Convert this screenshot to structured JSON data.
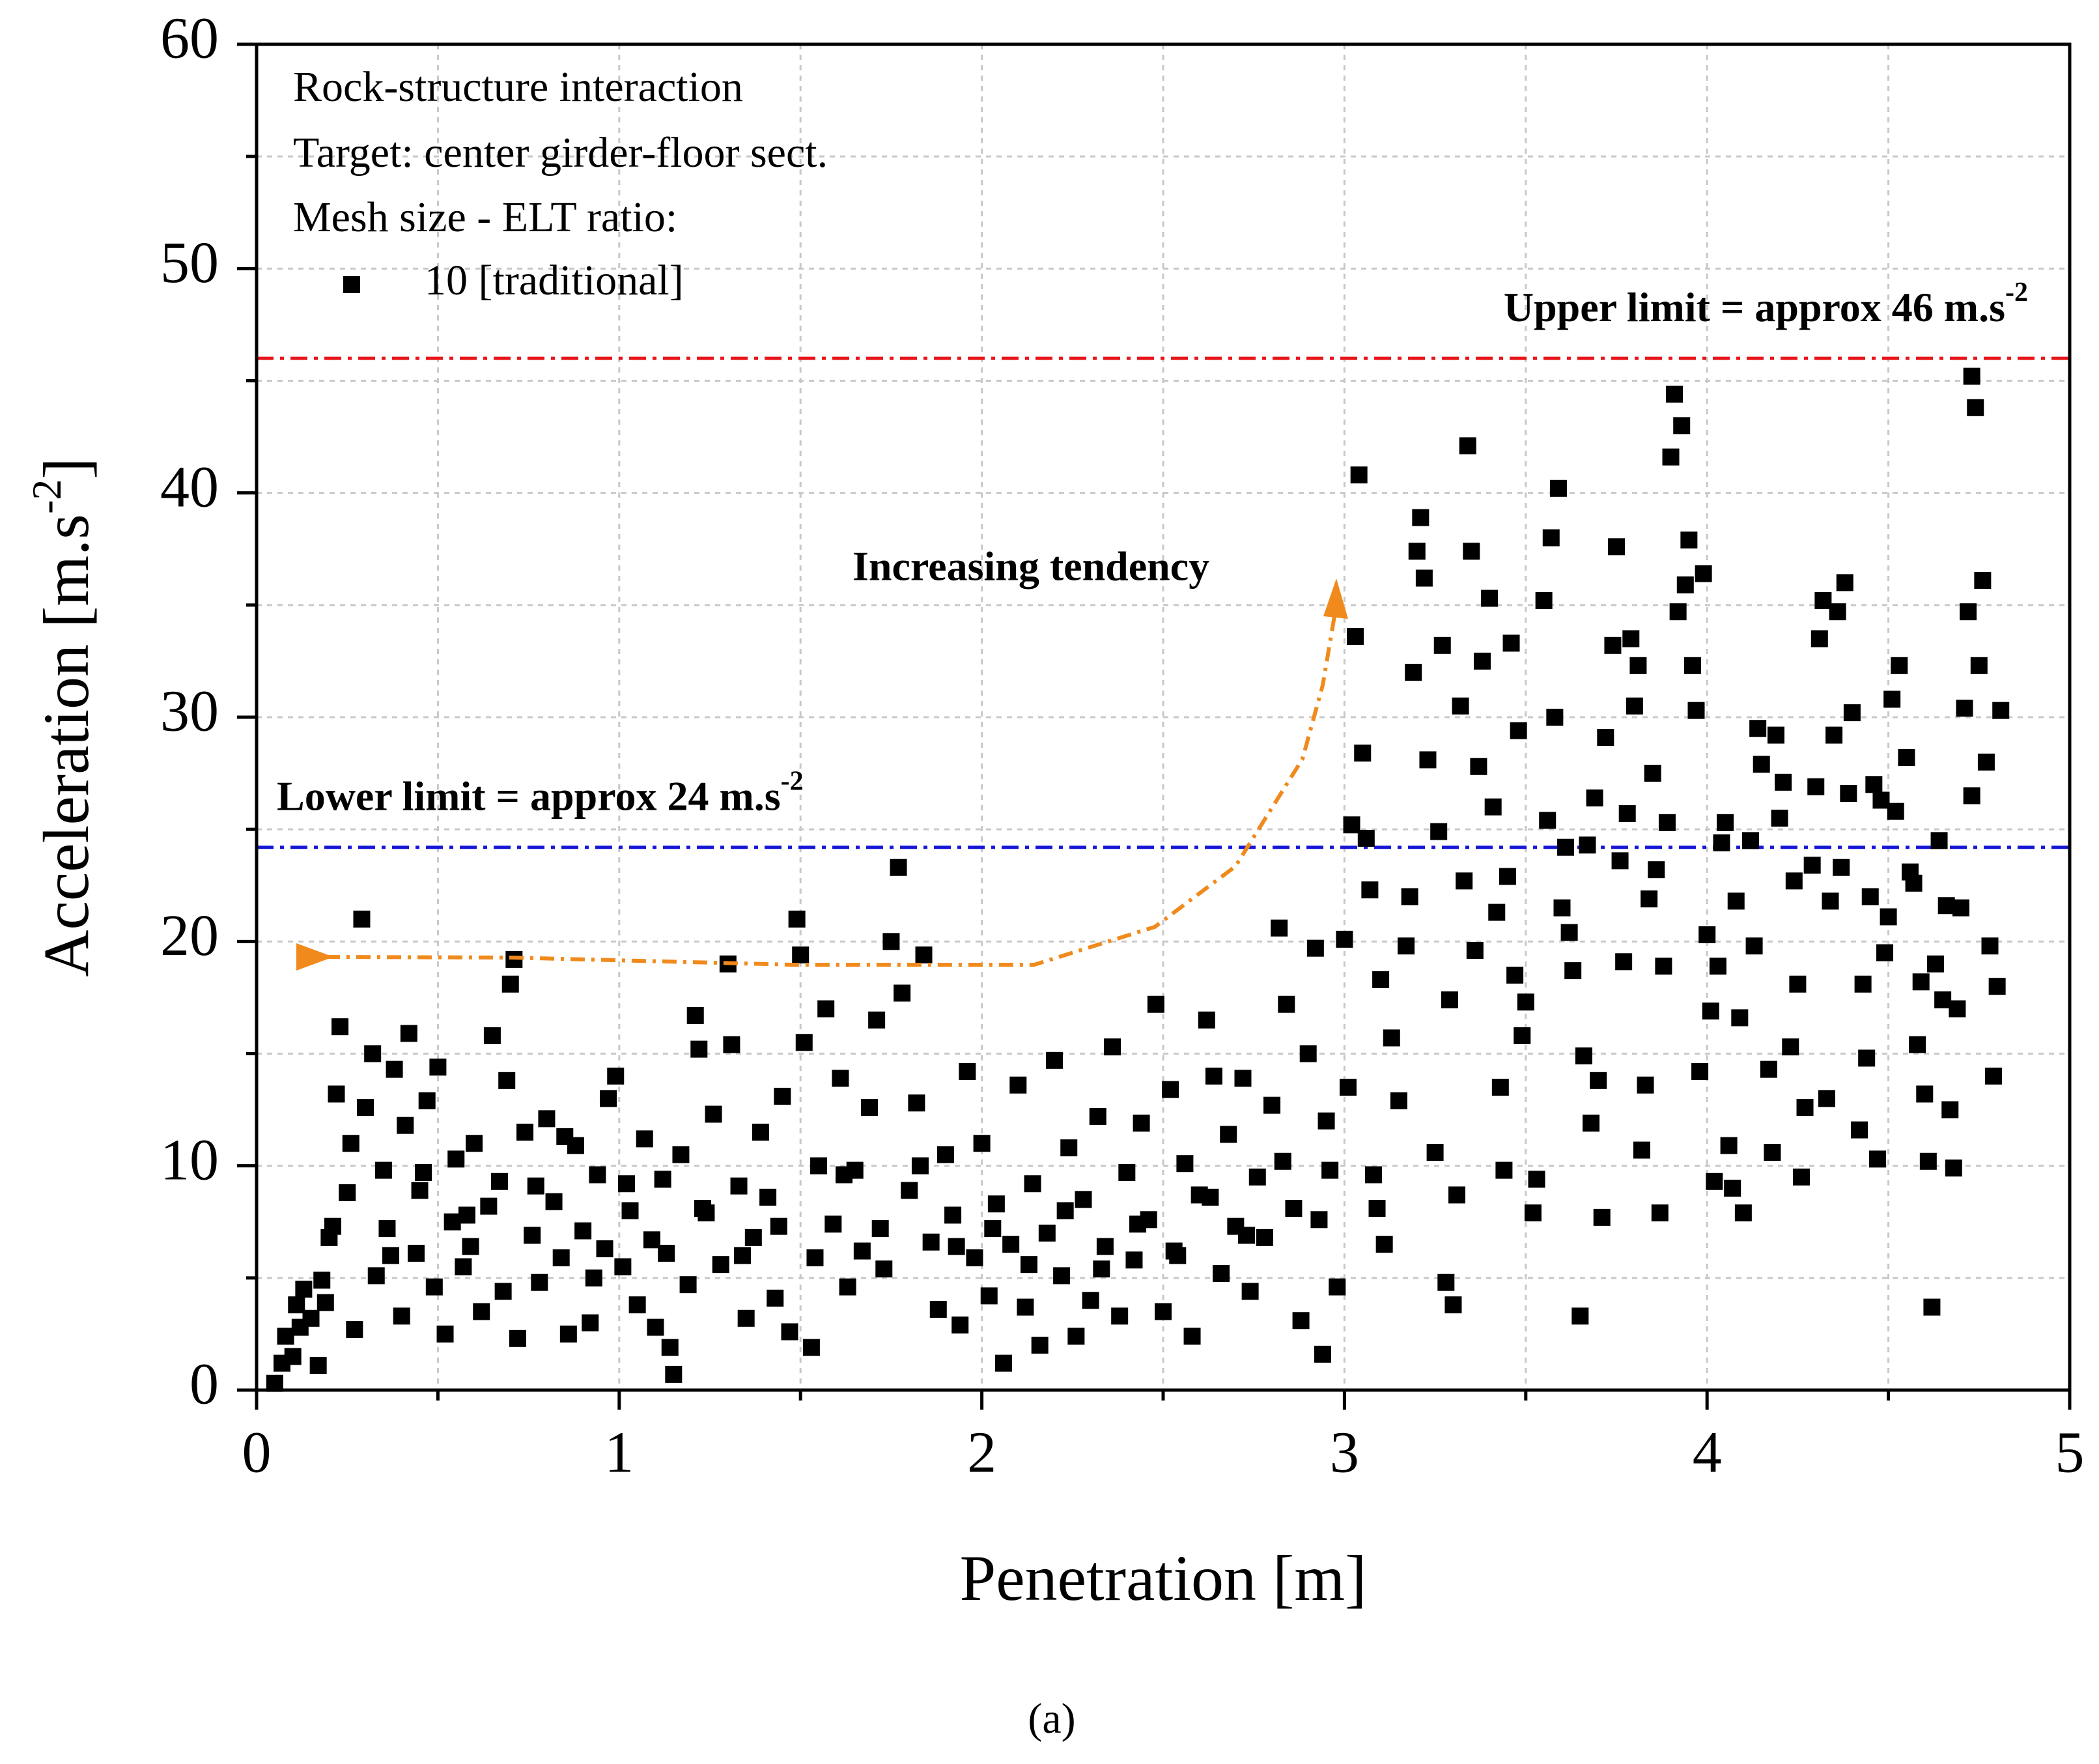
{
  "chart_data": {
    "type": "scatter",
    "x_label": "Penetration [m]",
    "y_label": {
      "text": "Acceleration [m.s",
      "sup": "-2",
      "tail": "]"
    },
    "caption": "(a)",
    "legend_title_lines": [
      "Rock-structure interaction",
      "Target: center girder-floor sect.",
      "Mesh size - ELT ratio:"
    ],
    "legend_position": "upper left",
    "annotation": "Increasing tendency",
    "xlim": [
      0,
      5
    ],
    "ylim": [
      0,
      60
    ],
    "xticks": [
      0,
      1,
      2,
      3,
      4,
      5
    ],
    "yticks": [
      0,
      10,
      20,
      30,
      40,
      50,
      60
    ],
    "xminorticks": [
      0.5,
      1.5,
      2.5,
      3.5,
      4.5
    ],
    "yminorticks": [
      5,
      15,
      25,
      35,
      45,
      55
    ],
    "grid": true,
    "hlines": [
      {
        "value": 46,
        "color": "#e8161b",
        "label": "Upper limit = approx 46 m.s",
        "label_sup": "-2",
        "label_align": "right"
      },
      {
        "value": 24.2,
        "color": "#1515d6",
        "label": "Lower limit = approx 24 m.s",
        "label_sup": "-2",
        "label_align": "left"
      }
    ],
    "series": [
      {
        "name": "10 [traditional]",
        "color": "#000000",
        "x": [
          0.05,
          0.07,
          0.08,
          0.1,
          0.11,
          0.12,
          0.13,
          0.15,
          0.17,
          0.18,
          0.19,
          0.2,
          0.21,
          0.22,
          0.23,
          0.25,
          0.27,
          0.29,
          0.3,
          0.32,
          0.33,
          0.35,
          0.36,
          0.38,
          0.4,
          0.41,
          0.42,
          0.44,
          0.45,
          0.47,
          0.49,
          0.5,
          0.52,
          0.54,
          0.55,
          0.57,
          0.59,
          0.6,
          0.62,
          0.64,
          0.65,
          0.67,
          0.69,
          0.7,
          0.71,
          0.72,
          0.74,
          0.76,
          0.78,
          0.8,
          0.82,
          0.84,
          0.86,
          0.88,
          0.9,
          0.92,
          0.94,
          0.96,
          0.97,
          0.99,
          1.01,
          1.03,
          1.05,
          1.07,
          1.09,
          1.1,
          1.12,
          1.14,
          1.15,
          1.17,
          1.19,
          1.21,
          1.22,
          1.24,
          1.26,
          1.28,
          1.3,
          1.31,
          1.33,
          1.35,
          1.37,
          1.39,
          1.41,
          1.43,
          1.45,
          1.47,
          1.49,
          1.5,
          1.51,
          1.53,
          1.55,
          1.57,
          1.59,
          1.61,
          1.63,
          1.65,
          1.67,
          1.69,
          1.71,
          1.73,
          1.75,
          1.77,
          1.78,
          1.8,
          1.82,
          1.84,
          1.86,
          1.88,
          1.9,
          1.92,
          1.94,
          1.96,
          1.98,
          2.0,
          2.02,
          2.04,
          2.06,
          2.08,
          2.1,
          2.12,
          2.14,
          2.16,
          2.18,
          2.2,
          2.22,
          2.24,
          2.26,
          2.28,
          2.3,
          2.32,
          2.34,
          2.36,
          2.38,
          2.4,
          2.42,
          2.44,
          2.46,
          2.48,
          2.5,
          2.52,
          2.54,
          2.56,
          2.58,
          2.6,
          2.62,
          2.64,
          2.66,
          2.68,
          2.7,
          2.72,
          2.74,
          2.76,
          2.78,
          2.8,
          2.82,
          2.84,
          2.86,
          2.88,
          2.9,
          2.92,
          2.94,
          2.95,
          2.96,
          2.98,
          3.0,
          3.01,
          3.02,
          3.03,
          3.04,
          3.05,
          3.06,
          3.07,
          3.09,
          3.1,
          3.11,
          3.13,
          3.15,
          3.17,
          3.19,
          3.2,
          3.21,
          3.22,
          3.23,
          3.25,
          3.26,
          3.27,
          3.28,
          3.29,
          3.3,
          3.31,
          3.32,
          3.33,
          3.34,
          3.35,
          3.36,
          3.37,
          3.38,
          3.4,
          3.41,
          3.42,
          3.43,
          3.44,
          3.45,
          3.46,
          3.47,
          3.48,
          3.49,
          3.5,
          3.52,
          3.53,
          3.55,
          3.56,
          3.57,
          3.58,
          3.59,
          3.6,
          3.61,
          3.62,
          3.63,
          3.65,
          3.66,
          3.67,
          3.68,
          3.69,
          3.7,
          3.71,
          3.72,
          3.74,
          3.75,
          3.76,
          3.77,
          3.78,
          3.79,
          3.8,
          3.81,
          3.82,
          3.83,
          3.84,
          3.85,
          3.86,
          3.87,
          3.88,
          3.89,
          3.9,
          3.91,
          3.92,
          3.93,
          3.94,
          3.95,
          3.96,
          3.97,
          3.98,
          3.99,
          4.0,
          4.01,
          4.02,
          4.03,
          4.04,
          4.05,
          4.06,
          4.07,
          4.08,
          4.09,
          4.1,
          4.12,
          4.13,
          4.14,
          4.15,
          4.17,
          4.18,
          4.19,
          4.2,
          4.21,
          4.23,
          4.24,
          4.25,
          4.26,
          4.27,
          4.29,
          4.3,
          4.31,
          4.32,
          4.33,
          4.34,
          4.35,
          4.36,
          4.37,
          4.38,
          4.39,
          4.4,
          4.42,
          4.43,
          4.44,
          4.45,
          4.46,
          4.47,
          4.48,
          4.49,
          4.5,
          4.51,
          4.52,
          4.53,
          4.55,
          4.56,
          4.57,
          4.58,
          4.59,
          4.6,
          4.61,
          4.62,
          4.63,
          4.64,
          4.65,
          4.66,
          4.67,
          4.68,
          4.69,
          4.7,
          4.71,
          4.72,
          4.73,
          4.74,
          4.75,
          4.76,
          4.77,
          4.78,
          4.79,
          4.8,
          4.81,
          4.73,
          0.26,
          0.37,
          0.46,
          0.58,
          0.68,
          0.77,
          0.85,
          0.93,
          1.02,
          1.13,
          1.23,
          1.34,
          1.44,
          1.54,
          1.62,
          1.72,
          1.83,
          1.93,
          2.03,
          2.13,
          2.23,
          2.33,
          2.43,
          2.53,
          2.63,
          2.73,
          2.83,
          2.93,
          3.08,
          3.18
        ],
        "values": [
          0.3,
          1.2,
          2.4,
          1.5,
          3.8,
          2.8,
          4.5,
          3.2,
          1.1,
          4.9,
          3.9,
          6.8,
          7.3,
          13.2,
          16.2,
          8.8,
          2.7,
          21.0,
          12.6,
          15.0,
          5.1,
          9.8,
          7.2,
          14.3,
          3.3,
          11.8,
          15.9,
          6.1,
          8.9,
          12.9,
          4.6,
          14.4,
          2.5,
          7.5,
          10.3,
          5.5,
          6.4,
          11.0,
          3.5,
          8.2,
          15.8,
          9.3,
          13.8,
          18.1,
          19.2,
          2.3,
          11.5,
          6.9,
          4.8,
          12.1,
          8.4,
          5.9,
          2.5,
          10.9,
          7.1,
          3.0,
          9.6,
          6.3,
          13.0,
          14.0,
          5.5,
          8.0,
          3.8,
          11.2,
          6.7,
          2.8,
          9.4,
          1.9,
          0.7,
          10.5,
          4.7,
          16.7,
          15.2,
          7.9,
          12.3,
          5.6,
          19.0,
          15.4,
          9.1,
          3.2,
          6.8,
          11.5,
          8.6,
          4.1,
          13.1,
          2.6,
          21.0,
          19.4,
          15.5,
          1.9,
          10.0,
          17.0,
          7.4,
          13.9,
          4.6,
          9.8,
          6.2,
          12.6,
          16.5,
          5.4,
          20.0,
          23.3,
          17.7,
          8.9,
          12.8,
          19.4,
          6.6,
          3.6,
          10.5,
          7.8,
          2.9,
          14.2,
          5.9,
          11.0,
          4.2,
          8.3,
          1.2,
          6.5,
          13.6,
          3.7,
          9.2,
          2.0,
          7.0,
          14.7,
          5.1,
          10.8,
          2.4,
          8.5,
          4.0,
          12.2,
          6.4,
          15.3,
          3.3,
          9.7,
          5.8,
          11.9,
          7.6,
          17.2,
          3.5,
          13.4,
          6.0,
          10.1,
          2.4,
          8.7,
          16.5,
          14.0,
          5.2,
          11.4,
          7.3,
          13.9,
          4.4,
          9.5,
          6.8,
          12.7,
          20.6,
          17.2,
          8.1,
          3.1,
          15.0,
          19.7,
          1.6,
          12.0,
          9.8,
          4.6,
          20.1,
          13.5,
          25.2,
          33.6,
          40.8,
          28.4,
          24.6,
          22.3,
          8.1,
          18.3,
          6.5,
          15.7,
          12.9,
          19.8,
          32.0,
          37.4,
          38.9,
          36.2,
          28.1,
          10.6,
          24.9,
          33.2,
          4.8,
          17.4,
          3.8,
          8.7,
          30.5,
          22.7,
          42.1,
          37.4,
          19.6,
          27.8,
          32.5,
          35.3,
          26.0,
          21.3,
          13.5,
          9.8,
          22.9,
          33.3,
          18.5,
          29.4,
          15.8,
          17.3,
          7.9,
          9.4,
          35.2,
          25.4,
          38.0,
          30.0,
          40.2,
          21.5,
          24.2,
          20.4,
          18.7,
          3.3,
          14.9,
          24.3,
          11.9,
          26.4,
          13.8,
          7.7,
          29.1,
          33.2,
          37.6,
          23.6,
          19.1,
          25.7,
          33.5,
          30.5,
          32.3,
          10.7,
          13.6,
          21.9,
          27.5,
          23.2,
          7.9,
          18.9,
          25.3,
          41.6,
          44.4,
          34.7,
          43.0,
          35.9,
          37.9,
          32.3,
          30.3,
          14.2,
          36.4,
          20.3,
          16.9,
          9.3,
          18.9,
          24.4,
          25.3,
          10.9,
          9.0,
          21.8,
          16.6,
          7.9,
          24.5,
          19.8,
          29.5,
          27.9,
          14.3,
          10.6,
          29.2,
          25.5,
          27.1,
          15.3,
          22.7,
          18.1,
          9.5,
          12.6,
          23.4,
          26.9,
          33.5,
          35.2,
          13.0,
          21.8,
          29.2,
          34.7,
          23.3,
          36.0,
          26.6,
          30.2,
          11.6,
          18.1,
          14.8,
          22.0,
          27.0,
          10.3,
          26.3,
          19.5,
          21.1,
          30.8,
          25.8,
          32.3,
          28.2,
          23.1,
          22.6,
          15.4,
          18.2,
          13.2,
          10.2,
          3.7,
          19.0,
          24.5,
          17.4,
          21.6,
          12.5,
          9.9,
          17.0,
          21.5,
          30.4,
          34.7,
          45.2,
          43.8,
          32.3,
          36.1,
          28.0,
          19.8,
          14.0,
          18.0,
          30.3,
          26.5,
          11.0,
          6.0,
          9.7,
          7.8,
          4.4,
          9.1,
          11.3,
          5.0,
          9.2,
          6.1,
          8.1,
          6.0,
          7.3,
          5.9,
          9.6,
          7.2,
          10.0,
          6.4,
          7.2,
          5.6,
          8.0,
          5.4,
          7.4,
          6.2,
          8.6,
          6.9,
          10.2,
          7.6,
          9.6,
          22.0
        ]
      }
    ]
  }
}
